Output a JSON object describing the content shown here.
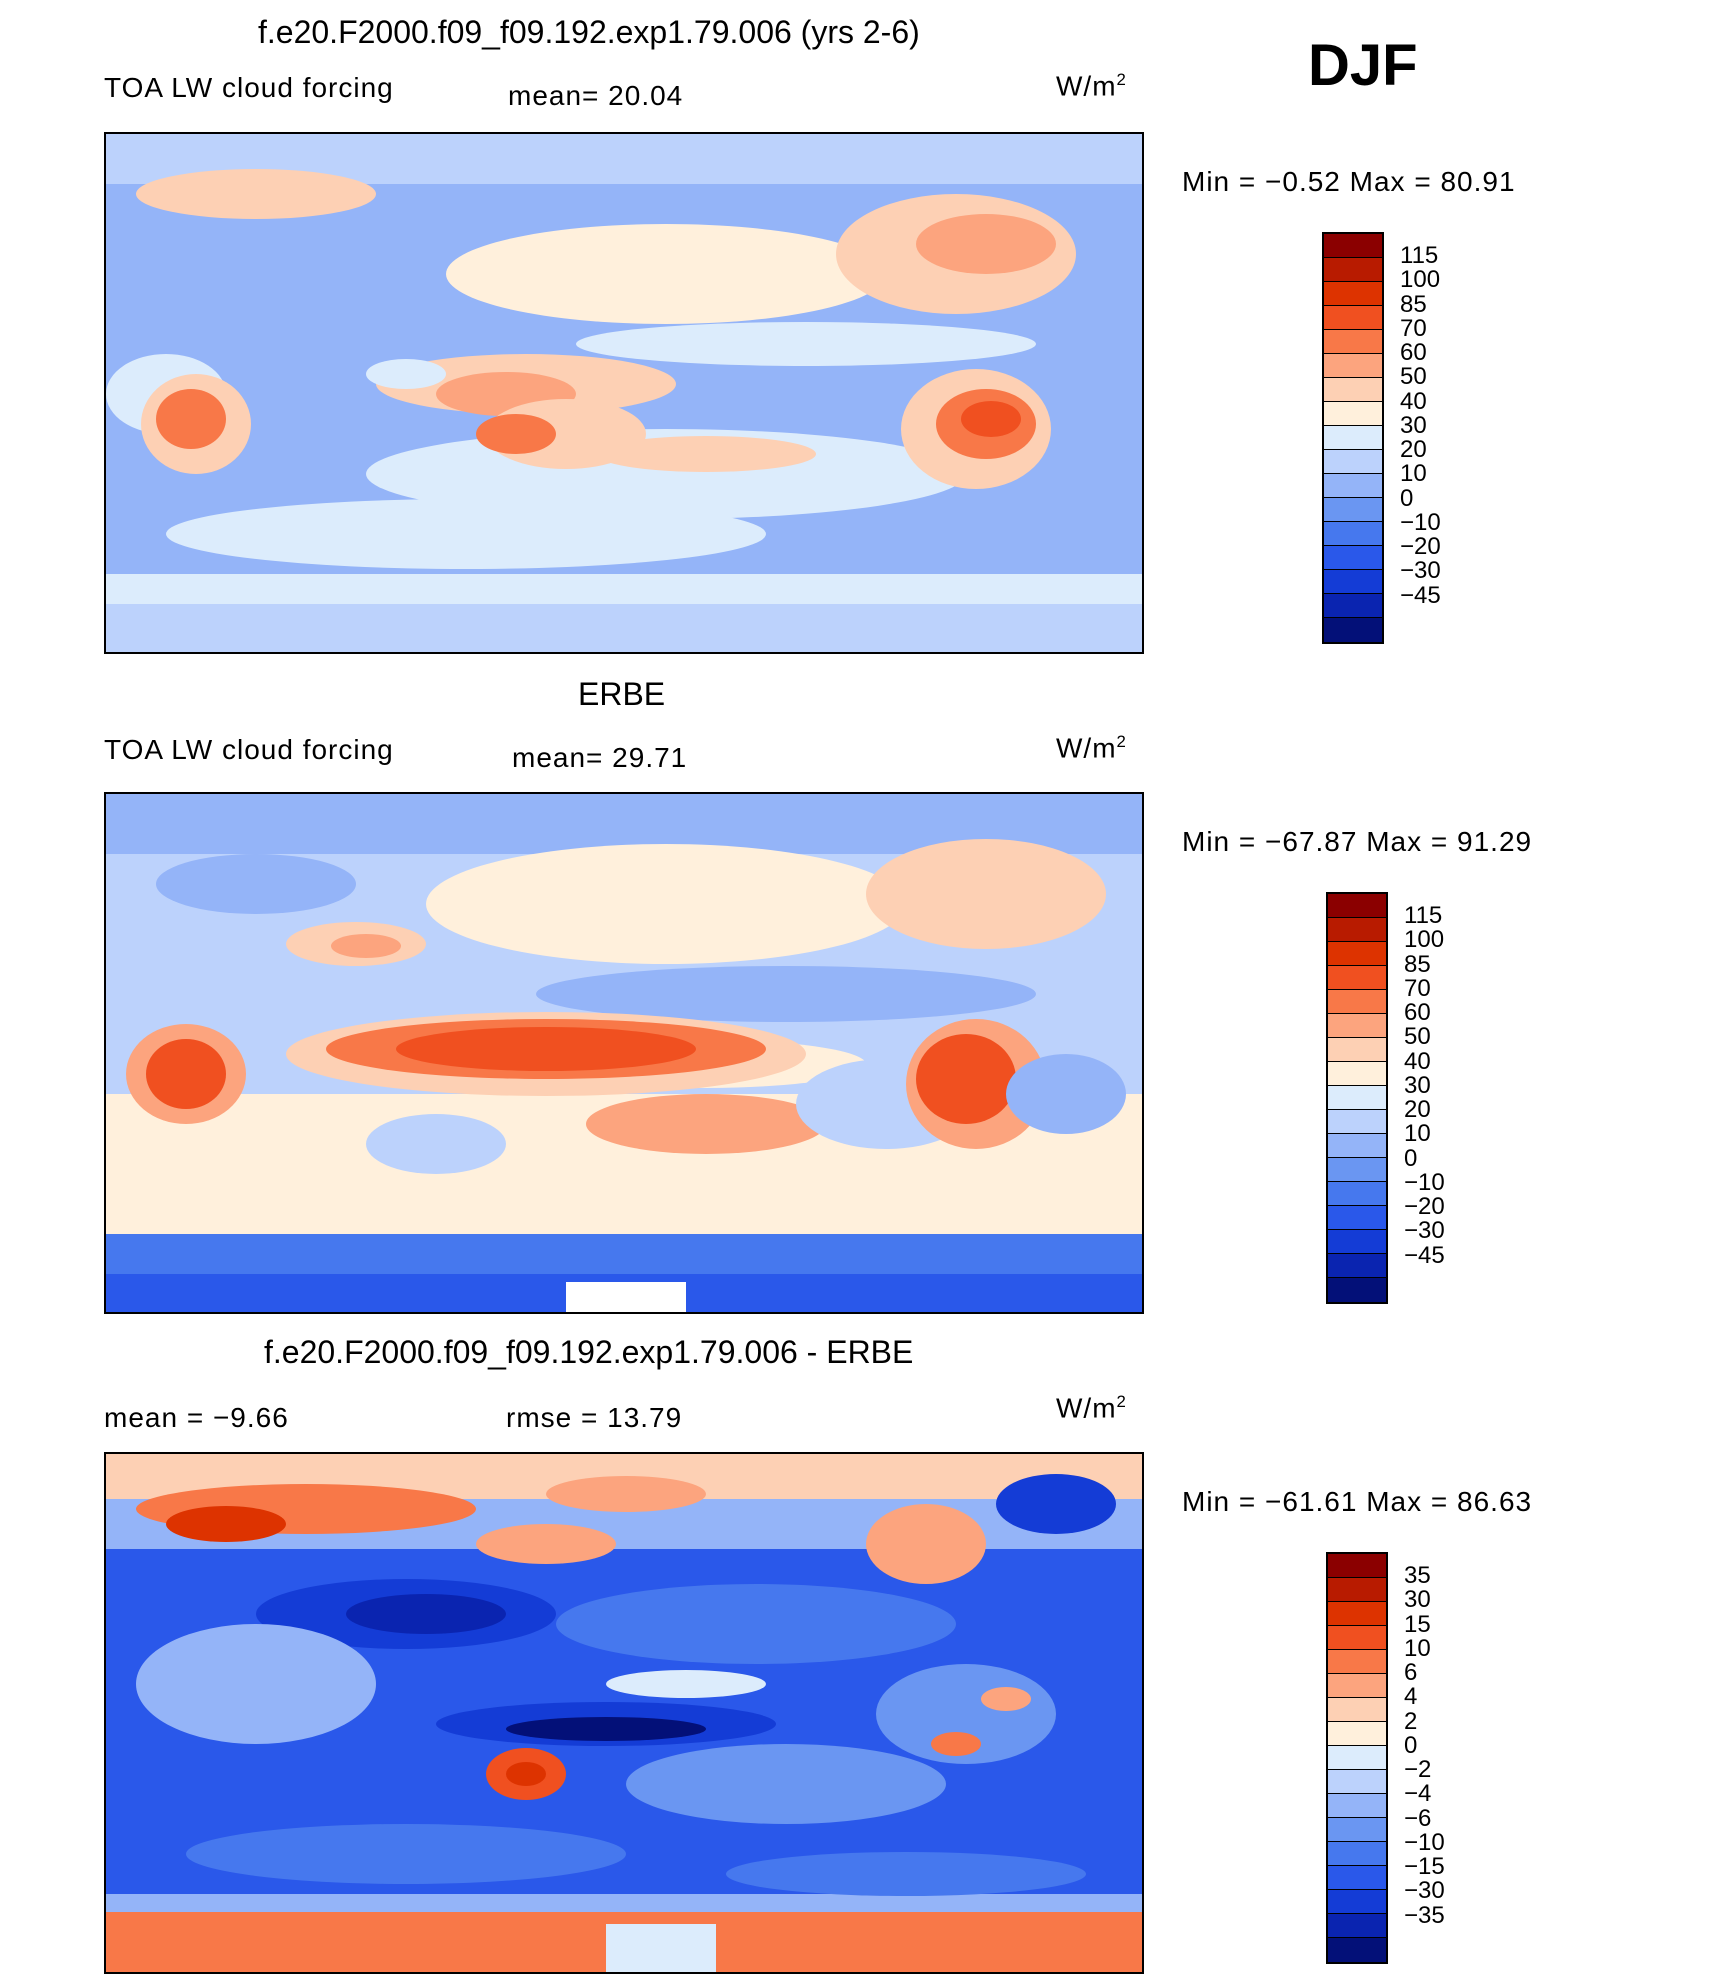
{
  "season": "DJF",
  "panels": [
    {
      "id": "model",
      "title": "f.e20.F2000.f09_f09.192.exp1.79.006 (yrs 2-6)",
      "left_label": "TOA LW cloud forcing",
      "stat1": "mean=   20.04",
      "stat2": "",
      "units": "W/m²",
      "minmax": "Min  =    −0.52  Max  =    80.91",
      "levels": [
        "115",
        "100",
        "85",
        "70",
        "60",
        "50",
        "40",
        "30",
        "20",
        "10",
        "0",
        "−10",
        "−20",
        "−30",
        "−45"
      ],
      "colors": [
        "#8b0000",
        "#b81b00",
        "#dd3300",
        "#f05020",
        "#f87848",
        "#fca47e",
        "#fdd0b4",
        "#fff0dc",
        "#dcecfc",
        "#bcd2fc",
        "#94b4f8",
        "#6a96f2",
        "#4678ee",
        "#2a58ea",
        "#143cd6",
        "#0a24b0",
        "#031078"
      ],
      "map_style": "model"
    },
    {
      "id": "obs",
      "title": "ERBE",
      "left_label": "TOA LW cloud forcing",
      "stat1": "mean=   29.71",
      "stat2": "",
      "units": "W/m²",
      "minmax": "Min  = −67.87  Max  =    91.29",
      "levels": [
        "115",
        "100",
        "85",
        "70",
        "60",
        "50",
        "40",
        "30",
        "20",
        "10",
        "0",
        "−10",
        "−20",
        "−30",
        "−45"
      ],
      "colors": [
        "#8b0000",
        "#b81b00",
        "#dd3300",
        "#f05020",
        "#f87848",
        "#fca47e",
        "#fdd0b4",
        "#fff0dc",
        "#dcecfc",
        "#bcd2fc",
        "#94b4f8",
        "#6a96f2",
        "#4678ee",
        "#2a58ea",
        "#143cd6",
        "#0a24b0",
        "#031078"
      ],
      "map_style": "obs"
    },
    {
      "id": "diff",
      "title": "f.e20.F2000.f09_f09.192.exp1.79.006 - ERBE",
      "left_label": "mean  =    −9.66",
      "stat1": "rmse  =    13.79",
      "stat2": "",
      "units": "W/m²",
      "minmax": "Min  = −61.61  Max  =    86.63",
      "levels": [
        "35",
        "30",
        "15",
        "10",
        "6",
        "4",
        "2",
        "0",
        "−2",
        "−4",
        "−6",
        "−10",
        "−15",
        "−30",
        "−35"
      ],
      "colors": [
        "#8b0000",
        "#b81b00",
        "#dd3300",
        "#f05020",
        "#f87848",
        "#fca47e",
        "#fdd0b4",
        "#fff0dc",
        "#dcecfc",
        "#bcd2fc",
        "#94b4f8",
        "#6a96f2",
        "#4678ee",
        "#2a58ea",
        "#143cd6",
        "#0a24b0",
        "#031078"
      ],
      "map_style": "diff"
    }
  ]
}
